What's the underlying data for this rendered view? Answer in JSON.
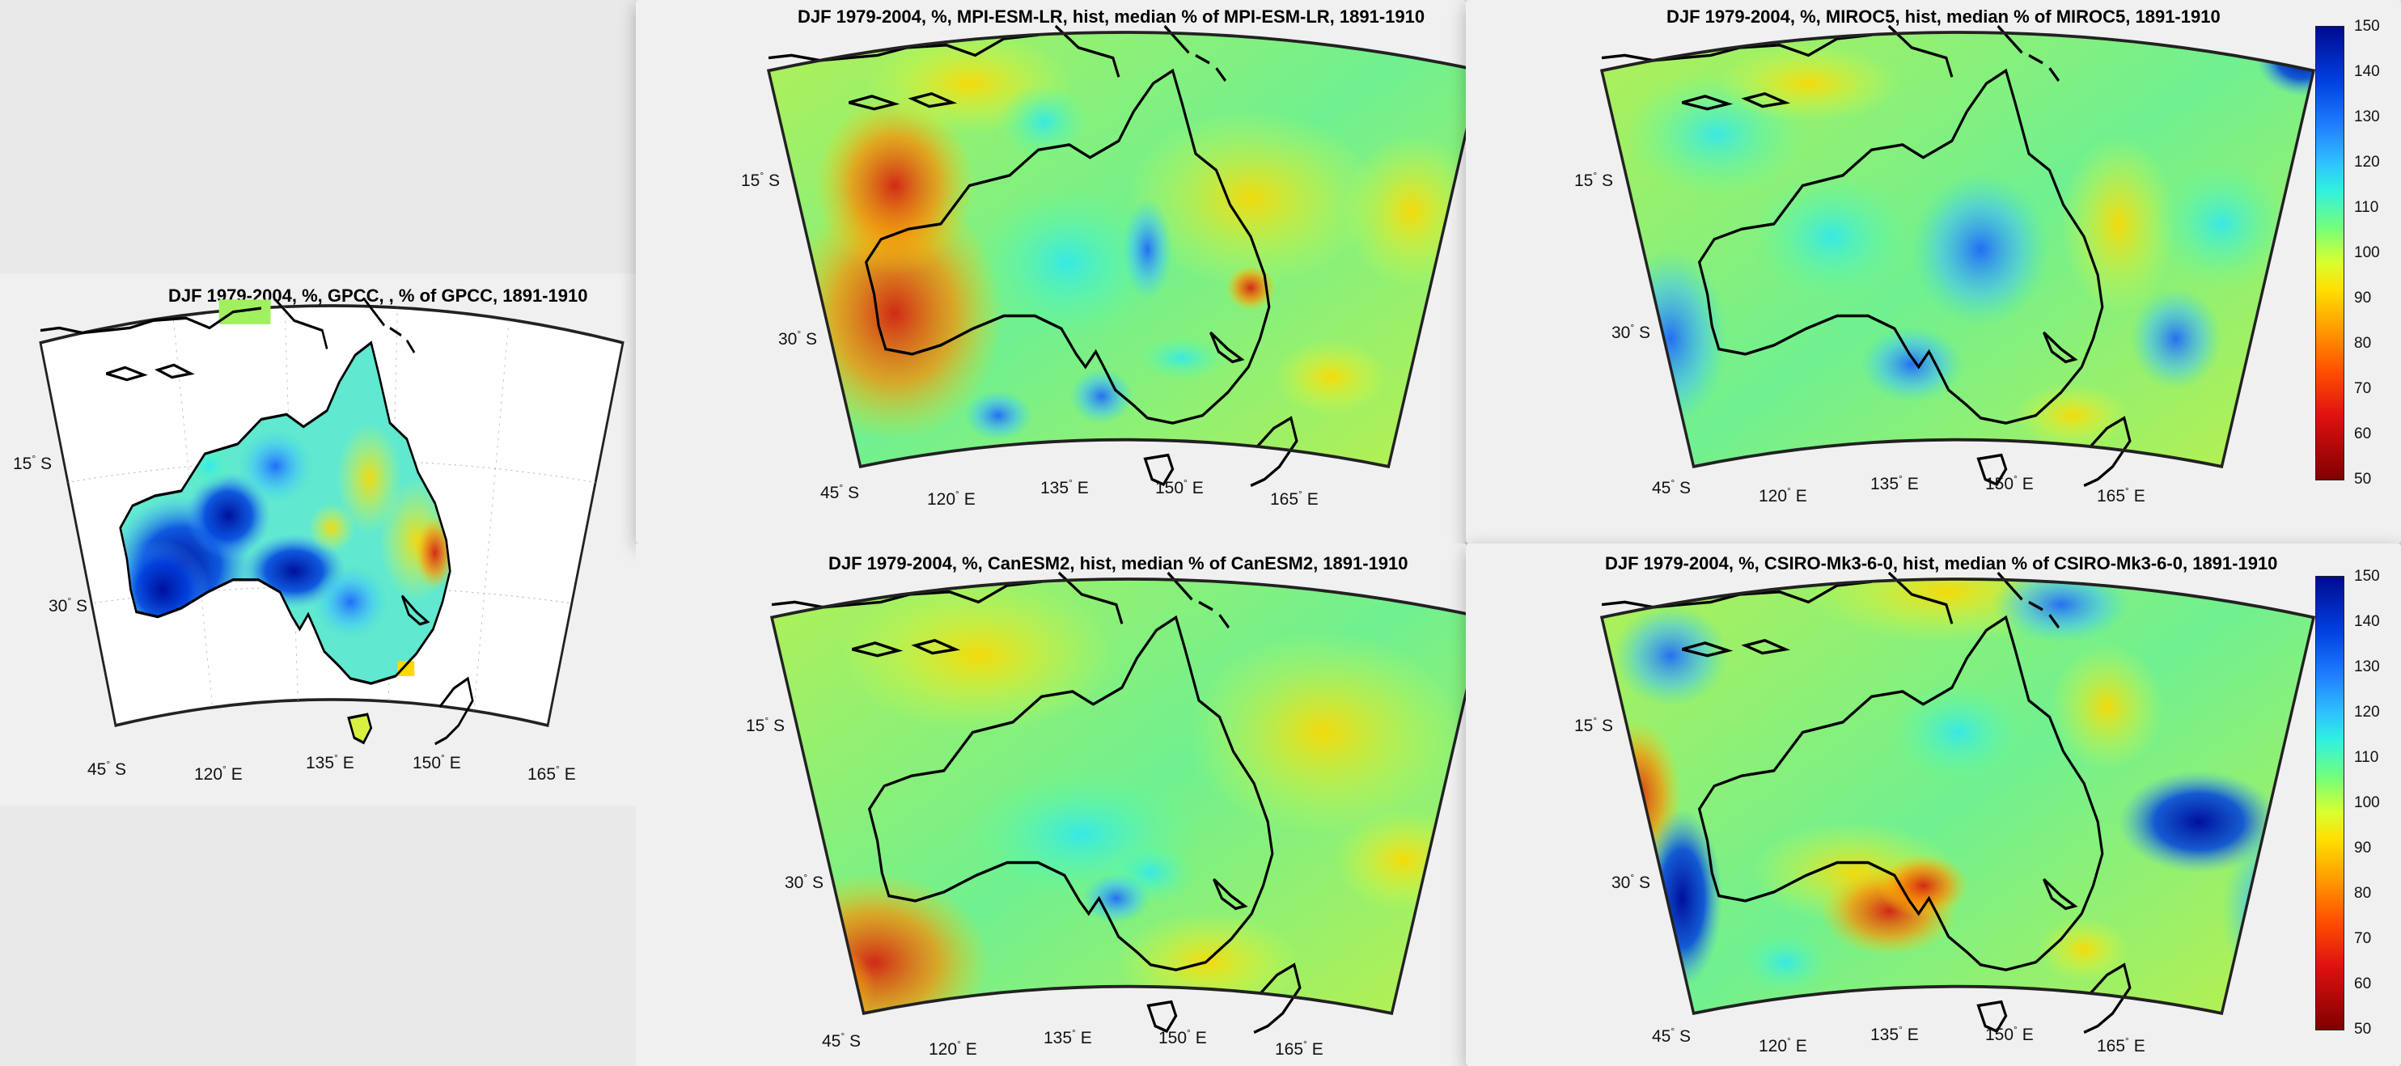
{
  "colors": {
    "panel_bg": "#f0f0f0",
    "desktop_bg": "#e9e9e9",
    "coast": "#000000"
  },
  "panels": [
    {
      "id": "gpcc",
      "title": "DJF 1979-2004, %, GPCC, ,  % of GPCC, 1891-1910",
      "lat_ticks": [
        "15",
        "30",
        "45"
      ],
      "lon_ticks": [
        "120",
        "135",
        "150",
        "165"
      ]
    },
    {
      "id": "mpi",
      "title": "DJF 1979-2004, %, MPI-ESM-LR, hist, median % of MPI-ESM-LR, 1891-1910",
      "lat_ticks": [
        "15",
        "30",
        "45"
      ],
      "lon_ticks": [
        "120",
        "135",
        "150",
        "165"
      ]
    },
    {
      "id": "miroc",
      "title": "DJF 1979-2004, %, MIROC5, hist, median % of MIROC5, 1891-1910",
      "lat_ticks": [
        "15",
        "30",
        "45"
      ],
      "lon_ticks": [
        "120",
        "135",
        "150",
        "165"
      ]
    },
    {
      "id": "canesm",
      "title": "DJF 1979-2004, %, CanESM2, hist, median % of CanESM2, 1891-1910",
      "lat_ticks": [
        "15",
        "30",
        "45"
      ],
      "lon_ticks": [
        "120",
        "135",
        "150",
        "165"
      ]
    },
    {
      "id": "csiro",
      "title": "DJF 1979-2004, %, CSIRO-Mk3-6-0, hist, median % of CSIRO-Mk3-6-0, 1891-1910",
      "lat_ticks": [
        "15",
        "30",
        "45"
      ],
      "lon_ticks": [
        "120",
        "135",
        "150",
        "165"
      ]
    }
  ],
  "tick_suffix": {
    "lat": "S",
    "lon": "E"
  },
  "colorbar": {
    "ticks": [
      "150",
      "140",
      "130",
      "120",
      "110",
      "100",
      "90",
      "80",
      "70",
      "60",
      "50"
    ]
  }
}
